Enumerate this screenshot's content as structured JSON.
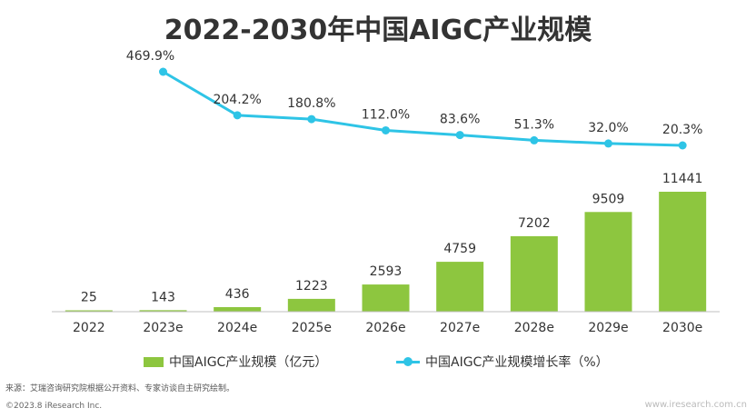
{
  "chart_data": {
    "type": "bar",
    "title": "2022-2030年中国AIGC产业规模",
    "categories": [
      "2022",
      "2023e",
      "2024e",
      "2025e",
      "2026e",
      "2027e",
      "2028e",
      "2029e",
      "2030e"
    ],
    "series": [
      {
        "name": "中国AIGC产业规模（亿元）",
        "type": "bar",
        "color": "#8DC63F",
        "values": [
          25,
          143,
          436,
          1223,
          2593,
          4759,
          7202,
          9509,
          11441
        ]
      },
      {
        "name": "中国AIGC产业规模增长率（%）",
        "type": "line",
        "color": "#2EC4E6",
        "x": [
          "2023e",
          "2024e",
          "2025e",
          "2026e",
          "2027e",
          "2028e",
          "2029e",
          "2030e"
        ],
        "values": [
          469.9,
          204.2,
          180.8,
          112.0,
          83.6,
          51.3,
          32.0,
          20.3
        ],
        "labels": [
          "469.9%",
          "204.2%",
          "180.8%",
          "112.0%",
          "83.6%",
          "51.3%",
          "32.0%",
          "20.3%"
        ]
      }
    ],
    "legend_position": "bottom",
    "grid": false
  },
  "source": "来源：艾瑞咨询研究院根据公开资料、专家访谈自主研究绘制。",
  "copyright": "©2023.8 iResearch Inc.",
  "watermark": "www.iresearch.com.cn"
}
